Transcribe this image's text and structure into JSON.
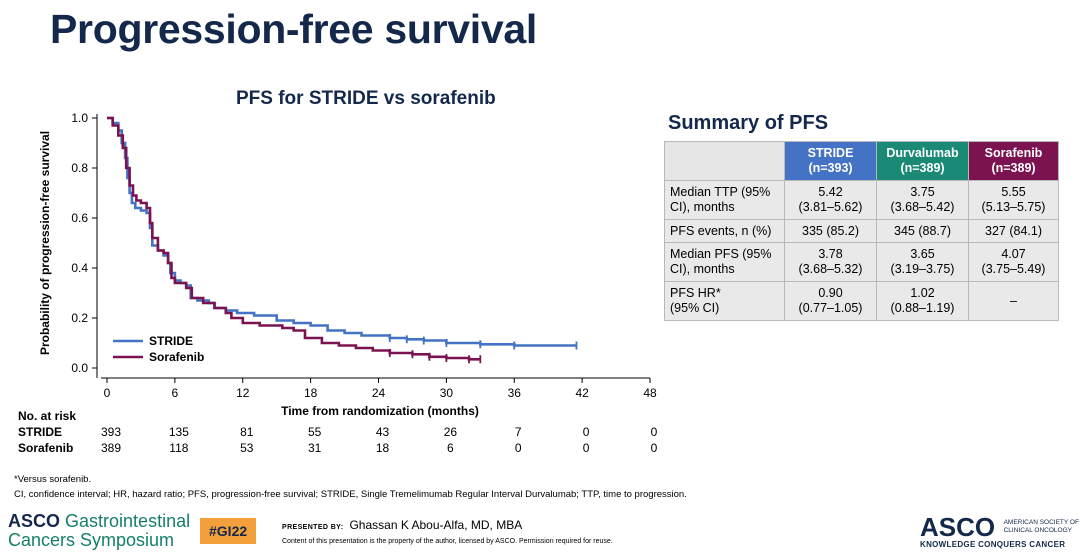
{
  "slide_title": "Progression-free survival",
  "chart_data": {
    "type": "line",
    "title": "PFS for STRIDE vs sorafenib",
    "xlabel": "Time from randomization (months)",
    "ylabel": "Probability of progression-free survival",
    "xlim": [
      0,
      48
    ],
    "ylim": [
      0,
      1
    ],
    "x_ticks": [
      0,
      6,
      12,
      18,
      24,
      30,
      36,
      42,
      48
    ],
    "y_ticks": [
      0.0,
      0.2,
      0.4,
      0.6,
      0.8,
      1.0
    ],
    "x_tick_labels": [
      "0",
      "6",
      "12",
      "18",
      "24",
      "30",
      "36",
      "42",
      "48"
    ],
    "y_tick_labels": [
      "0.0",
      "0.2",
      "0.4",
      "0.6",
      "0.8",
      "1.0"
    ],
    "legend_position": "bottom-left",
    "series": [
      {
        "name": "STRIDE",
        "color": "#4472c4",
        "x": [
          0,
          0.5,
          1.0,
          1.3,
          1.6,
          1.8,
          2.0,
          2.2,
          2.5,
          3.0,
          3.5,
          3.8,
          4.0,
          4.5,
          5.0,
          5.4,
          5.6,
          6.0,
          6.5,
          7.0,
          7.4,
          8.0,
          9.0,
          9.5,
          10.5,
          11.5,
          13.0,
          15.0,
          16.5,
          18.0,
          19.5,
          21.0,
          22.5,
          25.0,
          26.5,
          28.0,
          30.0,
          33.0,
          36.0,
          41.5
        ],
        "y": [
          1.0,
          0.98,
          0.95,
          0.9,
          0.84,
          0.76,
          0.7,
          0.66,
          0.64,
          0.63,
          0.62,
          0.56,
          0.49,
          0.47,
          0.45,
          0.42,
          0.38,
          0.35,
          0.34,
          0.33,
          0.28,
          0.27,
          0.26,
          0.24,
          0.23,
          0.22,
          0.21,
          0.19,
          0.18,
          0.17,
          0.15,
          0.14,
          0.13,
          0.12,
          0.115,
          0.11,
          0.1,
          0.095,
          0.09,
          0.09
        ]
      },
      {
        "name": "Sorafenib",
        "color": "#7b1350",
        "x": [
          0,
          0.5,
          1.0,
          1.4,
          1.7,
          2.0,
          2.3,
          2.6,
          3.0,
          3.5,
          3.8,
          4.0,
          4.5,
          5.0,
          5.4,
          5.7,
          6.0,
          7.0,
          7.5,
          8.5,
          9.5,
          10.5,
          11.0,
          12.0,
          13.5,
          15.5,
          16.5,
          17.5,
          19.0,
          20.5,
          22.0,
          23.5,
          25.0,
          27.0,
          28.5,
          30.0,
          32.0,
          33.0
        ],
        "y": [
          1.0,
          0.97,
          0.93,
          0.88,
          0.8,
          0.73,
          0.69,
          0.67,
          0.66,
          0.64,
          0.58,
          0.52,
          0.47,
          0.46,
          0.42,
          0.36,
          0.34,
          0.32,
          0.28,
          0.26,
          0.24,
          0.22,
          0.2,
          0.18,
          0.17,
          0.16,
          0.15,
          0.12,
          0.1,
          0.09,
          0.08,
          0.07,
          0.06,
          0.055,
          0.045,
          0.04,
          0.035,
          0.035
        ]
      }
    ],
    "at_risk": {
      "header": "No. at risk",
      "rows": [
        {
          "name": "STRIDE",
          "values": [
            "393",
            "135",
            "81",
            "55",
            "43",
            "26",
            "7",
            "0",
            "0"
          ]
        },
        {
          "name": "Sorafenib",
          "values": [
            "389",
            "118",
            "53",
            "31",
            "18",
            "6",
            "0",
            "0",
            "0"
          ]
        }
      ]
    }
  },
  "summary": {
    "title": "Summary of PFS",
    "headers": [
      {
        "name": "STRIDE",
        "n": "(n=393)"
      },
      {
        "name": "Durvalumab",
        "n": "(n=389)"
      },
      {
        "name": "Sorafenib",
        "n": "(n=389)"
      }
    ],
    "rows": [
      {
        "label_line1": "Median TTP (95%",
        "label_line2": "CI), months",
        "cells": [
          [
            "5.42",
            "(3.81–5.62)"
          ],
          [
            "3.75",
            "(3.68–5.42)"
          ],
          [
            "5.55",
            "(5.13–5.75)"
          ]
        ]
      },
      {
        "label_line1": "PFS events, n (%)",
        "label_line2": "",
        "cells": [
          [
            "335 (85.2)",
            ""
          ],
          [
            "345 (88.7)",
            ""
          ],
          [
            "327 (84.1)",
            ""
          ]
        ]
      },
      {
        "label_line1": "Median PFS (95%",
        "label_line2": "CI), months",
        "cells": [
          [
            "3.78",
            "(3.68–5.32)"
          ],
          [
            "3.65",
            "(3.19–3.75)"
          ],
          [
            "4.07",
            "(3.75–5.49)"
          ]
        ]
      },
      {
        "label_line1": "PFS HR*",
        "label_line2": "(95% CI)",
        "cells": [
          [
            "0.90",
            "(0.77–1.05)"
          ],
          [
            "1.02",
            "(0.88–1.19)"
          ],
          [
            "–",
            ""
          ]
        ]
      }
    ]
  },
  "footnotes": {
    "line1": "*Versus sorafenib.",
    "line2": "CI, confidence interval; HR, hazard ratio; PFS, progression-free survival; STRIDE, Single Tremelimumab Regular Interval Durvalumab; TTP, time to progression."
  },
  "footer": {
    "logo_left_brand": "ASCO",
    "logo_left_line1": "Gastrointestinal",
    "logo_left_line2": "Cancers Symposium",
    "hashtag": "#GI22",
    "presented_by_label": "PRESENTED BY:",
    "presenter": "Ghassan K Abou-Alfa, MD, MBA",
    "content_note": "Content of this presentation is the property of the author, licensed by ASCO. Permission required for reuse.",
    "asco_word": "ASCO",
    "asco_society_line1": "AMERICAN SOCIETY OF",
    "asco_society_line2": "CLINICAL ONCOLOGY",
    "asco_tagline": "KNOWLEDGE CONQUERS CANCER"
  }
}
